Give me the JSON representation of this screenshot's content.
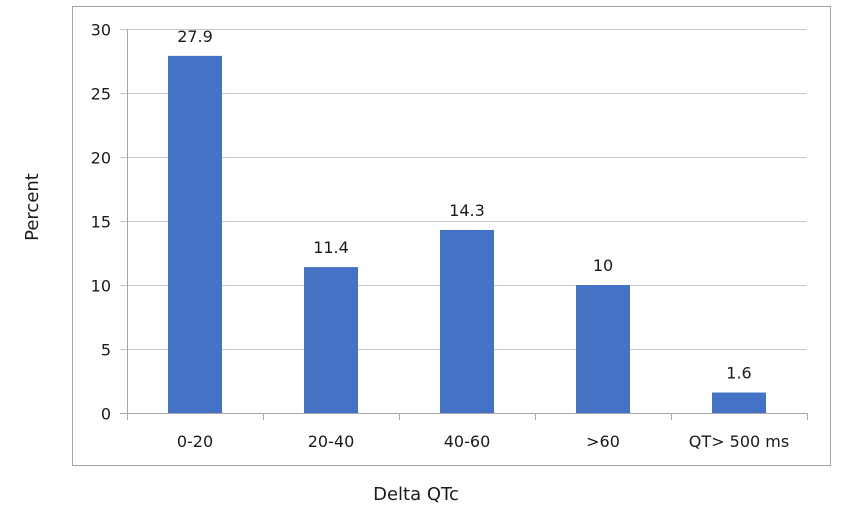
{
  "chart_data": {
    "type": "bar",
    "title": "",
    "xlabel": "Delta QTc",
    "ylabel": "Percent",
    "categories": [
      "0-20",
      "20-40",
      "40-60",
      ">60",
      "QT> 500 ms"
    ],
    "values": [
      27.9,
      11.4,
      14.3,
      10,
      1.6
    ],
    "data_labels": [
      "27.9",
      "11.4",
      "14.3",
      "10",
      "1.6"
    ],
    "ylim": [
      0,
      30
    ],
    "yticks": [
      0,
      5,
      10,
      15,
      20,
      25,
      30
    ],
    "grid": true,
    "legend": "none",
    "bar_color": "#4472C4"
  }
}
